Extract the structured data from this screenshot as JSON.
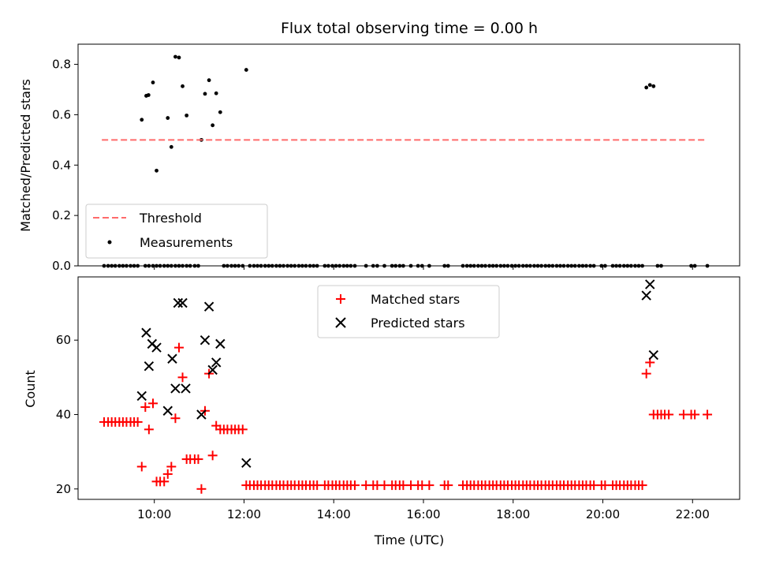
{
  "chart_data": {
    "type": "scatter",
    "title": "Flux total observing time = 0.00 h",
    "xlabel": "Time (UTC)",
    "x_ticks": [
      "10:00",
      "12:00",
      "14:00",
      "16:00",
      "18:00",
      "20:00",
      "22:00"
    ],
    "x_tick_hours": [
      10,
      12,
      14,
      16,
      18,
      20,
      22
    ],
    "xlim_hours": [
      8.3,
      23.05
    ],
    "top_panel": {
      "ylabel": "Matched/Predicted stars",
      "ylim": [
        0,
        0.88
      ],
      "y_ticks": [
        "0.0",
        "0.2",
        "0.4",
        "0.6",
        "0.8"
      ],
      "y_tick_values": [
        0.0,
        0.2,
        0.4,
        0.6,
        0.8
      ],
      "legend_location": "lower-left",
      "threshold": {
        "name": "Threshold",
        "value": 0.5,
        "x_range_hours": [
          8.83,
          22.33
        ],
        "color": "#ff6b6b",
        "style": "dashed"
      },
      "measurements": {
        "name": "Measurements",
        "color": "#000000",
        "points": [
          [
            9.72,
            0.58
          ],
          [
            9.82,
            0.675
          ],
          [
            9.87,
            0.678
          ],
          [
            9.97,
            0.728
          ],
          [
            10.05,
            0.378
          ],
          [
            10.3,
            0.587
          ],
          [
            10.38,
            0.472
          ],
          [
            10.47,
            0.83
          ],
          [
            10.55,
            0.827
          ],
          [
            10.63,
            0.713
          ],
          [
            10.72,
            0.597
          ],
          [
            11.05,
            0.5
          ],
          [
            11.13,
            0.683
          ],
          [
            11.22,
            0.737
          ],
          [
            11.3,
            0.558
          ],
          [
            11.38,
            0.685
          ],
          [
            11.47,
            0.61
          ],
          [
            12.05,
            0.778
          ],
          [
            20.97,
            0.708
          ],
          [
            21.05,
            0.718
          ],
          [
            21.13,
            0.713
          ],
          [
            8.88,
            0
          ],
          [
            8.97,
            0
          ],
          [
            9.05,
            0
          ],
          [
            9.13,
            0
          ],
          [
            9.22,
            0
          ],
          [
            9.3,
            0
          ],
          [
            9.38,
            0
          ],
          [
            9.47,
            0
          ],
          [
            9.55,
            0
          ],
          [
            9.63,
            0
          ],
          [
            9.8,
            0
          ],
          [
            9.88,
            0
          ],
          [
            9.97,
            0
          ],
          [
            10.05,
            0
          ],
          [
            10.13,
            0
          ],
          [
            10.22,
            0
          ],
          [
            10.3,
            0
          ],
          [
            10.38,
            0
          ],
          [
            10.47,
            0
          ],
          [
            10.55,
            0
          ],
          [
            10.63,
            0
          ],
          [
            10.72,
            0
          ],
          [
            10.8,
            0
          ],
          [
            10.9,
            0
          ],
          [
            10.98,
            0
          ],
          [
            11.55,
            0
          ],
          [
            11.63,
            0
          ],
          [
            11.72,
            0
          ],
          [
            11.8,
            0
          ],
          [
            11.88,
            0
          ],
          [
            11.97,
            0
          ],
          [
            12.13,
            0
          ],
          [
            12.22,
            0
          ],
          [
            12.3,
            0
          ],
          [
            12.38,
            0
          ],
          [
            12.47,
            0
          ],
          [
            12.55,
            0
          ],
          [
            12.63,
            0
          ],
          [
            12.72,
            0
          ],
          [
            12.8,
            0
          ],
          [
            12.88,
            0
          ],
          [
            12.97,
            0
          ],
          [
            13.05,
            0
          ],
          [
            13.13,
            0
          ],
          [
            13.22,
            0
          ],
          [
            13.3,
            0
          ],
          [
            13.38,
            0
          ],
          [
            13.47,
            0
          ],
          [
            13.55,
            0
          ],
          [
            13.63,
            0
          ],
          [
            13.8,
            0
          ],
          [
            13.88,
            0
          ],
          [
            13.97,
            0
          ],
          [
            14.05,
            0
          ],
          [
            14.13,
            0
          ],
          [
            14.22,
            0
          ],
          [
            14.3,
            0
          ],
          [
            14.38,
            0
          ],
          [
            14.47,
            0
          ],
          [
            14.72,
            0
          ],
          [
            14.88,
            0
          ],
          [
            14.97,
            0
          ],
          [
            15.13,
            0
          ],
          [
            15.3,
            0
          ],
          [
            15.38,
            0
          ],
          [
            15.47,
            0
          ],
          [
            15.55,
            0
          ],
          [
            15.72,
            0
          ],
          [
            15.88,
            0
          ],
          [
            15.97,
            0
          ],
          [
            16.13,
            0
          ],
          [
            16.47,
            0
          ],
          [
            16.55,
            0
          ],
          [
            16.88,
            0
          ],
          [
            16.97,
            0
          ],
          [
            17.05,
            0
          ],
          [
            17.13,
            0
          ],
          [
            17.22,
            0
          ],
          [
            17.3,
            0
          ],
          [
            17.38,
            0
          ],
          [
            17.47,
            0
          ],
          [
            17.55,
            0
          ],
          [
            17.63,
            0
          ],
          [
            17.72,
            0
          ],
          [
            17.8,
            0
          ],
          [
            17.88,
            0
          ],
          [
            17.97,
            0
          ],
          [
            18.05,
            0
          ],
          [
            18.13,
            0
          ],
          [
            18.22,
            0
          ],
          [
            18.3,
            0
          ],
          [
            18.38,
            0
          ],
          [
            18.47,
            0
          ],
          [
            18.55,
            0
          ],
          [
            18.63,
            0
          ],
          [
            18.72,
            0
          ],
          [
            18.8,
            0
          ],
          [
            18.88,
            0
          ],
          [
            18.97,
            0
          ],
          [
            19.05,
            0
          ],
          [
            19.13,
            0
          ],
          [
            19.22,
            0
          ],
          [
            19.3,
            0
          ],
          [
            19.38,
            0
          ],
          [
            19.47,
            0
          ],
          [
            19.55,
            0
          ],
          [
            19.63,
            0
          ],
          [
            19.72,
            0
          ],
          [
            19.8,
            0
          ],
          [
            19.97,
            0
          ],
          [
            20.05,
            0
          ],
          [
            20.22,
            0
          ],
          [
            20.3,
            0
          ],
          [
            20.38,
            0
          ],
          [
            20.47,
            0
          ],
          [
            20.55,
            0
          ],
          [
            20.63,
            0
          ],
          [
            20.72,
            0
          ],
          [
            20.8,
            0
          ],
          [
            20.88,
            0
          ],
          [
            21.22,
            0
          ],
          [
            21.3,
            0
          ],
          [
            21.97,
            0
          ],
          [
            22.05,
            0
          ],
          [
            22.33,
            0
          ]
        ]
      }
    },
    "bottom_panel": {
      "ylabel": "Count",
      "ylim": [
        17.2,
        77.0
      ],
      "y_ticks": [
        "20",
        "40",
        "60"
      ],
      "y_tick_values": [
        20,
        40,
        60
      ],
      "legend_location": "upper-center",
      "matched": {
        "name": "Matched stars",
        "color": "#ff0000",
        "marker": "+",
        "points": [
          [
            8.88,
            38
          ],
          [
            8.97,
            38
          ],
          [
            9.05,
            38
          ],
          [
            9.13,
            38
          ],
          [
            9.22,
            38
          ],
          [
            9.3,
            38
          ],
          [
            9.38,
            38
          ],
          [
            9.47,
            38
          ],
          [
            9.55,
            38
          ],
          [
            9.63,
            38
          ],
          [
            9.72,
            26
          ],
          [
            9.8,
            42
          ],
          [
            9.88,
            36
          ],
          [
            9.97,
            43
          ],
          [
            10.05,
            22
          ],
          [
            10.13,
            22
          ],
          [
            10.22,
            22
          ],
          [
            10.3,
            24
          ],
          [
            10.38,
            26
          ],
          [
            10.47,
            39
          ],
          [
            10.55,
            58
          ],
          [
            10.63,
            50
          ],
          [
            10.72,
            28
          ],
          [
            10.8,
            28
          ],
          [
            10.9,
            28
          ],
          [
            10.98,
            28
          ],
          [
            11.05,
            20
          ],
          [
            11.13,
            41
          ],
          [
            11.22,
            51
          ],
          [
            11.3,
            29
          ],
          [
            11.38,
            37
          ],
          [
            11.47,
            36
          ],
          [
            11.55,
            36
          ],
          [
            11.63,
            36
          ],
          [
            11.72,
            36
          ],
          [
            11.8,
            36
          ],
          [
            11.88,
            36
          ],
          [
            11.97,
            36
          ],
          [
            12.05,
            21
          ],
          [
            12.13,
            21
          ],
          [
            12.22,
            21
          ],
          [
            12.3,
            21
          ],
          [
            12.38,
            21
          ],
          [
            12.47,
            21
          ],
          [
            12.55,
            21
          ],
          [
            12.63,
            21
          ],
          [
            12.72,
            21
          ],
          [
            12.8,
            21
          ],
          [
            12.88,
            21
          ],
          [
            12.97,
            21
          ],
          [
            13.05,
            21
          ],
          [
            13.13,
            21
          ],
          [
            13.22,
            21
          ],
          [
            13.3,
            21
          ],
          [
            13.38,
            21
          ],
          [
            13.47,
            21
          ],
          [
            13.55,
            21
          ],
          [
            13.63,
            21
          ],
          [
            13.8,
            21
          ],
          [
            13.88,
            21
          ],
          [
            13.97,
            21
          ],
          [
            14.05,
            21
          ],
          [
            14.13,
            21
          ],
          [
            14.22,
            21
          ],
          [
            14.3,
            21
          ],
          [
            14.38,
            21
          ],
          [
            14.47,
            21
          ],
          [
            14.72,
            21
          ],
          [
            14.88,
            21
          ],
          [
            14.97,
            21
          ],
          [
            15.13,
            21
          ],
          [
            15.3,
            21
          ],
          [
            15.38,
            21
          ],
          [
            15.47,
            21
          ],
          [
            15.55,
            21
          ],
          [
            15.72,
            21
          ],
          [
            15.88,
            21
          ],
          [
            15.97,
            21
          ],
          [
            16.13,
            21
          ],
          [
            16.47,
            21
          ],
          [
            16.55,
            21
          ],
          [
            16.88,
            21
          ],
          [
            16.97,
            21
          ],
          [
            17.05,
            21
          ],
          [
            17.13,
            21
          ],
          [
            17.22,
            21
          ],
          [
            17.3,
            21
          ],
          [
            17.38,
            21
          ],
          [
            17.47,
            21
          ],
          [
            17.55,
            21
          ],
          [
            17.63,
            21
          ],
          [
            17.72,
            21
          ],
          [
            17.8,
            21
          ],
          [
            17.88,
            21
          ],
          [
            17.97,
            21
          ],
          [
            18.05,
            21
          ],
          [
            18.13,
            21
          ],
          [
            18.22,
            21
          ],
          [
            18.3,
            21
          ],
          [
            18.38,
            21
          ],
          [
            18.47,
            21
          ],
          [
            18.55,
            21
          ],
          [
            18.63,
            21
          ],
          [
            18.72,
            21
          ],
          [
            18.8,
            21
          ],
          [
            18.88,
            21
          ],
          [
            18.97,
            21
          ],
          [
            19.05,
            21
          ],
          [
            19.13,
            21
          ],
          [
            19.22,
            21
          ],
          [
            19.3,
            21
          ],
          [
            19.38,
            21
          ],
          [
            19.47,
            21
          ],
          [
            19.55,
            21
          ],
          [
            19.63,
            21
          ],
          [
            19.72,
            21
          ],
          [
            19.8,
            21
          ],
          [
            19.97,
            21
          ],
          [
            20.05,
            21
          ],
          [
            20.22,
            21
          ],
          [
            20.3,
            21
          ],
          [
            20.38,
            21
          ],
          [
            20.47,
            21
          ],
          [
            20.55,
            21
          ],
          [
            20.63,
            21
          ],
          [
            20.72,
            21
          ],
          [
            20.8,
            21
          ],
          [
            20.88,
            21
          ],
          [
            20.97,
            51
          ],
          [
            21.05,
            54
          ],
          [
            21.13,
            40
          ],
          [
            21.22,
            40
          ],
          [
            21.3,
            40
          ],
          [
            21.38,
            40
          ],
          [
            21.47,
            40
          ],
          [
            21.8,
            40
          ],
          [
            21.97,
            40
          ],
          [
            22.05,
            40
          ],
          [
            22.33,
            40
          ]
        ]
      },
      "predicted": {
        "name": "Predicted stars",
        "color": "#000000",
        "marker": "x",
        "points": [
          [
            9.72,
            45
          ],
          [
            9.82,
            62
          ],
          [
            9.88,
            53
          ],
          [
            9.95,
            59
          ],
          [
            10.05,
            58
          ],
          [
            10.3,
            41
          ],
          [
            10.4,
            55
          ],
          [
            10.47,
            47
          ],
          [
            10.53,
            70
          ],
          [
            10.63,
            70
          ],
          [
            10.7,
            47
          ],
          [
            11.05,
            40
          ],
          [
            11.13,
            60
          ],
          [
            11.22,
            69
          ],
          [
            11.3,
            52
          ],
          [
            11.38,
            54
          ],
          [
            11.47,
            59
          ],
          [
            12.05,
            27
          ],
          [
            20.97,
            72
          ],
          [
            21.05,
            75
          ],
          [
            21.13,
            56
          ]
        ]
      }
    }
  }
}
